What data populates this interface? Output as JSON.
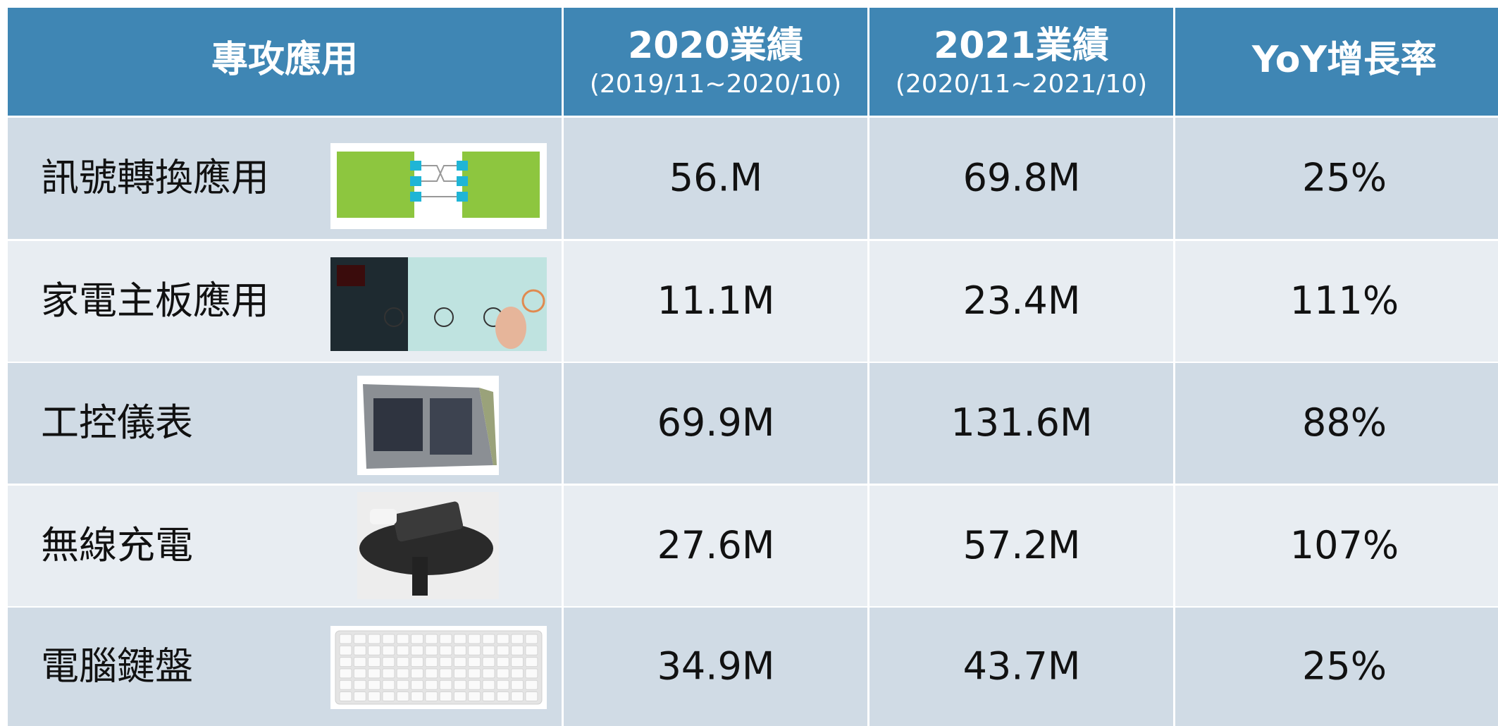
{
  "table": {
    "columns": [
      {
        "title": "專攻應用"
      },
      {
        "title": "2020業績",
        "period": "(2019/11~2020/10)"
      },
      {
        "title": "2021業績",
        "period": "(2020/11~2021/10)"
      },
      {
        "title": "YoY增長率"
      }
    ],
    "rows": [
      [
        "訊號轉換應用",
        "56.M",
        "69.8M",
        "25%"
      ],
      [
        "家電主板應用",
        "11.1M",
        "23.4M",
        "111%"
      ],
      [
        "工控儀表",
        "69.9M",
        "131.6M",
        "88%"
      ],
      [
        "無線充電",
        "27.6M",
        "57.2M",
        "107%"
      ],
      [
        "電腦鍵盤",
        "34.9M",
        "43.7M",
        "25%"
      ]
    ]
  }
}
